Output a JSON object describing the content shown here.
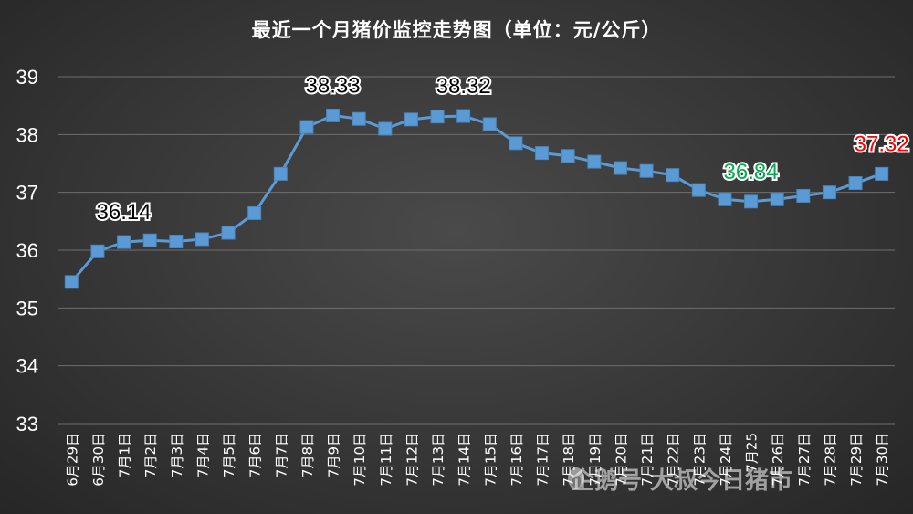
{
  "chart_data": {
    "type": "line",
    "title": "最近一个月猪价监控走势图（单位：元/公斤）",
    "categories": [
      "6月29日",
      "6月30日",
      "7月1日",
      "7月2日",
      "7月3日",
      "7月4日",
      "7月5日",
      "7月6日",
      "7月7日",
      "7月8日",
      "7月9日",
      "7月10日",
      "7月11日",
      "7月12日",
      "7月13日",
      "7月14日",
      "7月15日",
      "7月16日",
      "7月17日",
      "7月18日",
      "7月19日",
      "7月20日",
      "7月21日",
      "7月22日",
      "7月23日",
      "7月24日",
      "7月25",
      "7月26日",
      "7月27日",
      "7月28日",
      "7月29日",
      "7月30日"
    ],
    "series": [
      {
        "values": [
          35.45,
          35.98,
          36.14,
          36.17,
          36.15,
          36.19,
          36.3,
          36.64,
          37.32,
          38.13,
          38.33,
          38.27,
          38.1,
          38.26,
          38.31,
          38.32,
          38.18,
          37.85,
          37.68,
          37.63,
          37.53,
          37.42,
          37.37,
          37.3,
          37.04,
          36.88,
          36.84,
          36.88,
          36.94,
          37.0,
          37.16,
          37.32
        ],
        "color": "#5b9bd5"
      }
    ],
    "ylim": [
      33,
      39
    ],
    "yticks": [
      "33",
      "34",
      "35",
      "36",
      "37",
      "38",
      "39"
    ],
    "grid": true,
    "annotations": [
      {
        "index": 2,
        "text": "36.14",
        "color": "#000000"
      },
      {
        "index": 10,
        "text": "38.33",
        "color": "#000000"
      },
      {
        "index": 15,
        "text": "38.32",
        "color": "#000000"
      },
      {
        "index": 26,
        "text": "36.84",
        "color": "#00b050"
      },
      {
        "index": 31,
        "text": "37.32",
        "color": "#ff0000"
      }
    ]
  },
  "watermark": "企鹅号 大叔今日猪市"
}
